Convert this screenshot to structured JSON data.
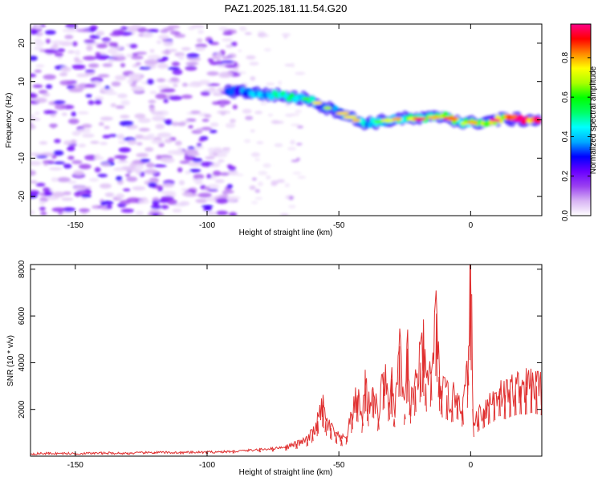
{
  "title": "PAZ1.2025.181.11.54.G20",
  "chart_data": [
    {
      "type": "heatmap",
      "title": "PAZ1.2025.181.11.54.G20",
      "xlabel": "Height of straight line (km)",
      "ylabel": "Frequency (Hz)",
      "xlim": [
        -167,
        27
      ],
      "ylim": [
        -25,
        25
      ],
      "xticks": [
        -150,
        -100,
        -50,
        0
      ],
      "xtick_labels": [
        "-150",
        "-100",
        "-50",
        "0"
      ],
      "yticks": [
        -20,
        -10,
        0,
        10,
        20
      ],
      "ytick_labels": [
        "-20",
        "-10",
        "0",
        "10",
        "20"
      ],
      "colorbar": {
        "label": "Normalized spectral amplitude",
        "range": [
          0,
          0.97
        ],
        "ticks": [
          0,
          0.2,
          0.4,
          0.6,
          0.8
        ],
        "tick_labels": [
          "0.0",
          "0.2",
          "0.4",
          "0.6",
          "0.8"
        ],
        "colormap": [
          "#ffffff",
          "#d8b4f4",
          "#9a40f0",
          "#6a00ff",
          "#0000ff",
          "#00aaff",
          "#00ffff",
          "#00ff66",
          "#00ff00",
          "#aaff00",
          "#ffff00",
          "#ff8800",
          "#ff0000",
          "#ff0088"
        ]
      },
      "ridge_trace": [
        {
          "x": -92,
          "y": 7.5,
          "a": 0.3
        },
        {
          "x": -88,
          "y": 7.5,
          "a": 0.32
        },
        {
          "x": -84,
          "y": 7.2,
          "a": 0.36
        },
        {
          "x": -80,
          "y": 6.8,
          "a": 0.4
        },
        {
          "x": -76,
          "y": 6.6,
          "a": 0.42
        },
        {
          "x": -72,
          "y": 6.3,
          "a": 0.46
        },
        {
          "x": -68,
          "y": 6.0,
          "a": 0.5
        },
        {
          "x": -64,
          "y": 5.6,
          "a": 0.4
        },
        {
          "x": -60,
          "y": 5.3,
          "a": 0.46
        },
        {
          "x": -57,
          "y": 3.8,
          "a": 0.32
        },
        {
          "x": -54,
          "y": 3.0,
          "a": 0.3
        },
        {
          "x": -50,
          "y": 2.2,
          "a": 0.36
        },
        {
          "x": -46,
          "y": 0.8,
          "a": 0.38
        },
        {
          "x": -42,
          "y": -0.6,
          "a": 0.44
        },
        {
          "x": -38,
          "y": -0.8,
          "a": 0.4
        },
        {
          "x": -34,
          "y": -0.4,
          "a": 0.42
        },
        {
          "x": -30,
          "y": 0.0,
          "a": 0.46
        },
        {
          "x": -26,
          "y": 0.4,
          "a": 0.5
        },
        {
          "x": -22,
          "y": 0.2,
          "a": 0.52
        },
        {
          "x": -18,
          "y": 0.3,
          "a": 0.55
        },
        {
          "x": -14,
          "y": 0.6,
          "a": 0.58
        },
        {
          "x": -10,
          "y": 1.0,
          "a": 0.6
        },
        {
          "x": -6,
          "y": 0.0,
          "a": 0.55
        },
        {
          "x": -2,
          "y": -1.0,
          "a": 0.52
        },
        {
          "x": 2,
          "y": -0.6,
          "a": 0.58
        },
        {
          "x": 6,
          "y": -0.5,
          "a": 0.7
        },
        {
          "x": 10,
          "y": 0.0,
          "a": 0.74
        },
        {
          "x": 14,
          "y": 0.2,
          "a": 0.8
        },
        {
          "x": 18,
          "y": 0.1,
          "a": 0.86
        },
        {
          "x": 22,
          "y": 0.0,
          "a": 0.92
        },
        {
          "x": 26,
          "y": 0.0,
          "a": 0.95
        }
      ]
    },
    {
      "type": "line",
      "xlabel": "Height of straight line (km)",
      "ylabel": "SNR (10 * v/v)",
      "xlim": [
        -167,
        27
      ],
      "ylim": [
        0,
        8200
      ],
      "xticks": [
        -150,
        -100,
        -50,
        0
      ],
      "xtick_labels": [
        "-150",
        "-100",
        "-50",
        "0"
      ],
      "yticks": [
        2000,
        4000,
        6000,
        8000
      ],
      "ytick_labels": [
        "2000",
        "4000",
        "6000",
        "8000"
      ],
      "line_color": "#e03030",
      "series": [
        {
          "x": [
            -167,
            -160,
            -150,
            -140,
            -130,
            -120,
            -110,
            -100,
            -90,
            -80,
            -75,
            -70,
            -66,
            -62,
            -60,
            -58,
            -56,
            -55,
            -53,
            -51,
            -49,
            -47,
            -45,
            -43,
            -41,
            -40,
            -39,
            -37,
            -35,
            -33,
            -31,
            -30,
            -29,
            -27,
            -25,
            -24,
            -23,
            -21,
            -19,
            -18,
            -17,
            -15,
            -13,
            -12,
            -11,
            -9,
            -7,
            -5,
            -3,
            -1,
            0,
            1,
            3,
            5,
            7,
            9,
            11,
            13,
            15,
            17,
            19,
            21,
            23,
            25,
            27
          ],
          "y": [
            100,
            120,
            110,
            130,
            120,
            160,
            150,
            170,
            200,
            280,
            330,
            400,
            520,
            700,
            1000,
            1500,
            2200,
            1500,
            1200,
            900,
            700,
            850,
            1800,
            2600,
            1500,
            3700,
            2000,
            2900,
            1600,
            3600,
            2300,
            3300,
            1600,
            4700,
            1800,
            4600,
            2200,
            3000,
            4000,
            4800,
            3100,
            3600,
            6100,
            3400,
            2800,
            2600,
            2400,
            2700,
            2000,
            3700,
            8200,
            1300,
            1800,
            2000,
            2300,
            2500,
            2900,
            2600,
            2800,
            2900,
            3000,
            2950,
            3100,
            3000,
            2900
          ]
        }
      ]
    }
  ]
}
